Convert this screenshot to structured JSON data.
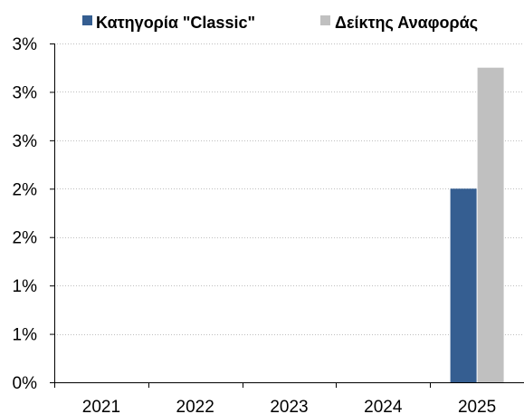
{
  "chart_data": {
    "type": "bar",
    "title": "",
    "xlabel": "",
    "ylabel": "",
    "categories": [
      "2021",
      "2022",
      "2023",
      "2024",
      "2025"
    ],
    "series": [
      {
        "name": "Κατηγορία \"Classic\"",
        "color": "#355e91",
        "values": [
          null,
          null,
          null,
          null,
          2.0
        ]
      },
      {
        "name": "Δείκτης Αναφοράς",
        "color": "#c0c0c0",
        "values": [
          null,
          null,
          null,
          null,
          3.25
        ]
      }
    ],
    "ylim": [
      0,
      3.5
    ],
    "y_tick_values": [
      0,
      0.5,
      1,
      1.5,
      2,
      2.5,
      3,
      3.5
    ],
    "y_tick_labels": [
      "0%",
      "1%",
      "1%",
      "2%",
      "2%",
      "3%",
      "3%",
      "3%"
    ],
    "grid": true,
    "legend_position": "top"
  }
}
